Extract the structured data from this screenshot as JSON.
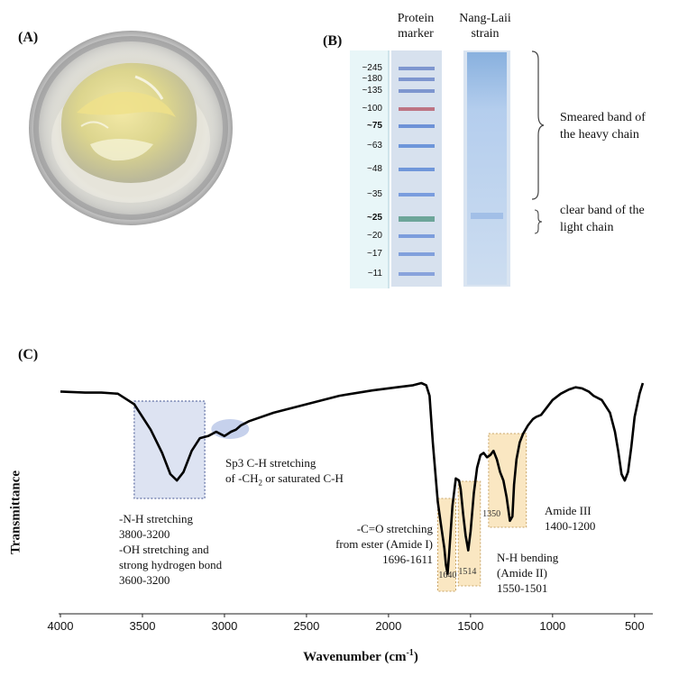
{
  "panel_a": {
    "label": "(A)"
  },
  "panel_b": {
    "label": "(B)",
    "lanes": [
      "Protein marker",
      "Nang-Laii strain"
    ],
    "lane_protein_marker": [
      "Protein",
      "marker"
    ],
    "lane_nang_laii": [
      "Nang-Laii",
      "strain"
    ],
    "markers": [
      {
        "text": "~245",
        "bold": false
      },
      {
        "text": "~180",
        "bold": false
      },
      {
        "text": "~135",
        "bold": false
      },
      {
        "text": "~100",
        "bold": false
      },
      {
        "text": "~75",
        "bold": true
      },
      {
        "text": "~63",
        "bold": false
      },
      {
        "text": "~48",
        "bold": false
      },
      {
        "text": "~35",
        "bold": false
      },
      {
        "text": "~25",
        "bold": true
      },
      {
        "text": "~20",
        "bold": false
      },
      {
        "text": "~17",
        "bold": false
      },
      {
        "text": "~11",
        "bold": false
      }
    ],
    "heavy_chain_note": [
      "Smeared band of",
      "the heavy chain"
    ],
    "light_chain_note": [
      "clear band of the",
      "light chain"
    ]
  },
  "panel_c": {
    "label": "(C)",
    "ylabel": "Transmittance",
    "xlabel": "Wavenumber (cm",
    "xlabel_sup": "-1",
    "xlabel_close": ")",
    "xticks": [
      "4000",
      "3500",
      "3000",
      "2500",
      "2000",
      "1500",
      "1000",
      "500"
    ],
    "annotations": {
      "nh_oh": [
        "-N-H stretching",
        "3800-3200",
        "-OH stretching and",
        "strong hydrogen bond",
        "3600-3200"
      ],
      "sp3": [
        "Sp3 C-H stretching",
        "of -CH",
        "2",
        " or saturated C-H"
      ],
      "co": [
        "-C=O stretching",
        "from ester (Amide I)",
        "1696-1611"
      ],
      "nh_bend": [
        "N-H bending",
        "(Amide II)",
        "1550-1501"
      ],
      "amide3": [
        "Amide III",
        "1400-1200"
      ]
    },
    "peaks": [
      "1640",
      "1514",
      "1350"
    ]
  },
  "chart_data": {
    "type": "line",
    "title": "",
    "xlabel": "Wavenumber (cm-1)",
    "ylabel": "Transmittance",
    "xlim": [
      4000,
      400
    ],
    "x_reversed": true,
    "y_ticks_shown": false,
    "series": [
      {
        "x": [
          4000,
          3850,
          3750,
          3650,
          3550,
          3450,
          3380,
          3330,
          3290,
          3250,
          3200,
          3150,
          3100,
          3050,
          3000,
          2960,
          2930,
          2900,
          2850,
          2700,
          2500,
          2300,
          2100,
          1950,
          1850,
          1800,
          1770,
          1750,
          1730,
          1700,
          1680,
          1660,
          1650,
          1640,
          1630,
          1610,
          1590,
          1570,
          1560,
          1545,
          1530,
          1514,
          1500,
          1480,
          1460,
          1440,
          1420,
          1400,
          1380,
          1360,
          1340,
          1320,
          1300,
          1280,
          1260,
          1245,
          1235,
          1220,
          1200,
          1180,
          1150,
          1120,
          1100,
          1070,
          1040,
          1000,
          950,
          900,
          860,
          820,
          780,
          750,
          700,
          650,
          620,
          600,
          580,
          560,
          540,
          520,
          500,
          470,
          450
        ],
        "y": [
          0.96,
          0.955,
          0.955,
          0.95,
          0.9,
          0.78,
          0.67,
          0.57,
          0.54,
          0.58,
          0.68,
          0.74,
          0.75,
          0.77,
          0.75,
          0.77,
          0.78,
          0.8,
          0.82,
          0.86,
          0.9,
          0.94,
          0.965,
          0.98,
          0.99,
          1.0,
          0.99,
          0.94,
          0.72,
          0.44,
          0.33,
          0.22,
          0.14,
          0.1,
          0.2,
          0.42,
          0.55,
          0.54,
          0.5,
          0.38,
          0.28,
          0.21,
          0.3,
          0.48,
          0.6,
          0.66,
          0.67,
          0.65,
          0.66,
          0.68,
          0.64,
          0.58,
          0.54,
          0.46,
          0.35,
          0.37,
          0.52,
          0.64,
          0.72,
          0.76,
          0.8,
          0.83,
          0.84,
          0.85,
          0.88,
          0.92,
          0.95,
          0.97,
          0.98,
          0.975,
          0.96,
          0.94,
          0.92,
          0.86,
          0.77,
          0.68,
          0.57,
          0.54,
          0.58,
          0.7,
          0.84,
          0.95,
          1.0
        ]
      }
    ],
    "highlight_regions": [
      {
        "label": "3800-3200",
        "x": [
          3550,
          3120
        ]
      },
      {
        "label": "1640",
        "x": [
          1700,
          1590
        ]
      },
      {
        "label": "1514",
        "x": [
          1575,
          1440
        ]
      },
      {
        "label": "1350",
        "x": [
          1390,
          1160
        ]
      }
    ],
    "data_labels": [
      "1640",
      "1514",
      "1350"
    ]
  }
}
